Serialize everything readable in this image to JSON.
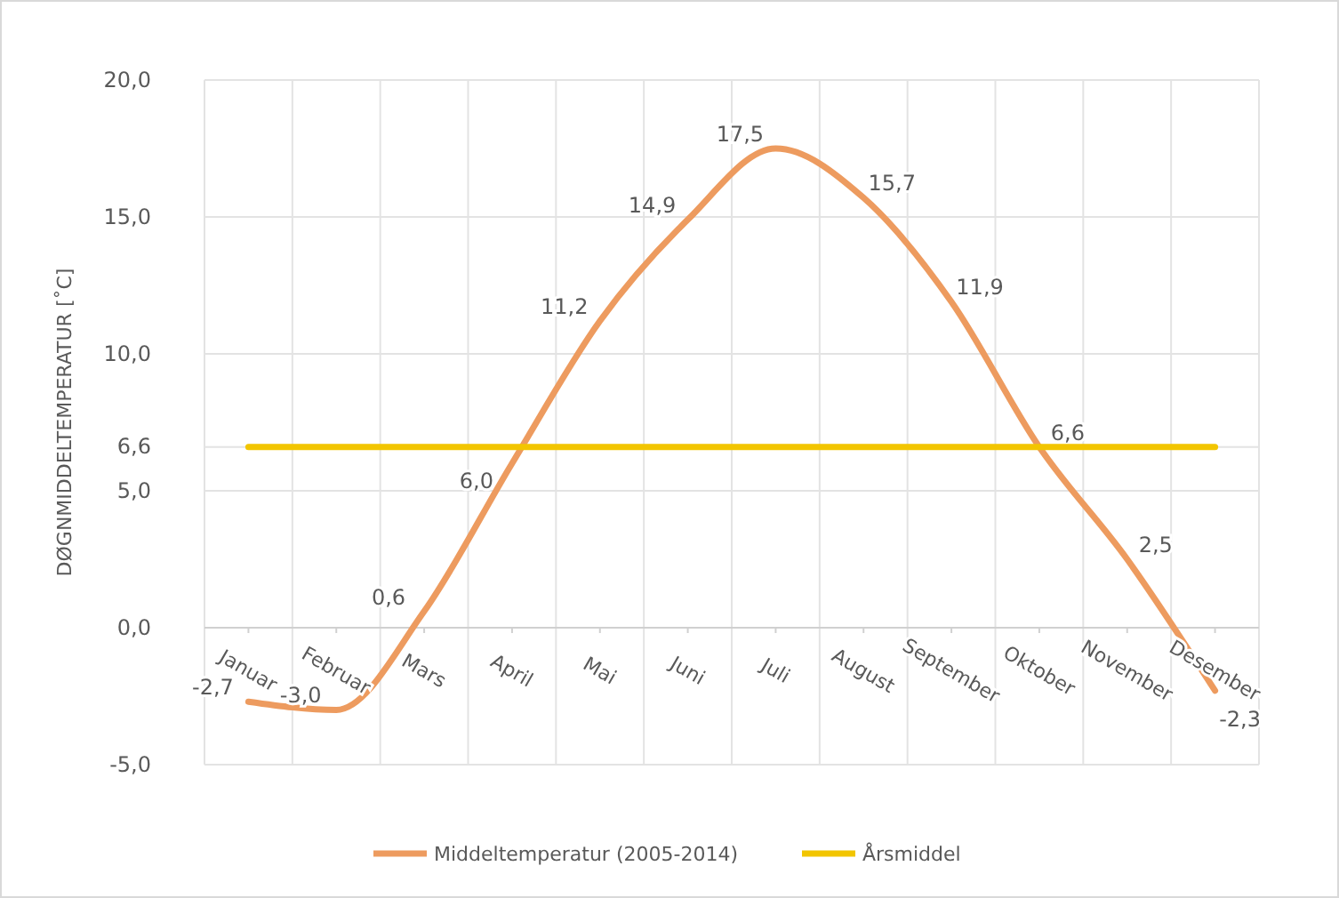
{
  "chart_data": {
    "type": "line",
    "ylabel": "DØGNMIDDELTEMPERATUR [˚C]",
    "categories": [
      "Januar",
      "Februar",
      "Mars",
      "April",
      "Mai",
      "Juni",
      "Juli",
      "August",
      "September",
      "Oktober",
      "November",
      "Desember"
    ],
    "series": [
      {
        "name": "Middeltemperatur (2005-2014)",
        "color": "#ed9b5f",
        "values": [
          -2.7,
          -3.0,
          0.6,
          6.0,
          11.2,
          14.9,
          17.5,
          15.7,
          11.9,
          6.6,
          2.5,
          -2.3
        ],
        "value_labels": [
          "-2,7",
          "-3,0",
          "0,6",
          "6,0",
          "11,2",
          "14,9",
          "17,5",
          "15,7",
          "11,9",
          "6,6",
          "2,5",
          "-2,3"
        ]
      },
      {
        "name": "Årsmiddel",
        "color": "#f2c500",
        "values": [
          6.6,
          6.6,
          6.6,
          6.6,
          6.6,
          6.6,
          6.6,
          6.6,
          6.6,
          6.6,
          6.6,
          6.6
        ]
      }
    ],
    "ylim": [
      -5,
      20
    ],
    "yticks": [
      {
        "value": -5,
        "label": "-5,0"
      },
      {
        "value": 0,
        "label": "0,0"
      },
      {
        "value": 5,
        "label": "5,0"
      },
      {
        "value": 6.6,
        "label": "6,6"
      },
      {
        "value": 10,
        "label": "10,0"
      },
      {
        "value": 15,
        "label": "15,0"
      },
      {
        "value": 20,
        "label": "20,0"
      }
    ],
    "grid": true,
    "legend": "bottom",
    "marker": "none",
    "line_style": "solid"
  }
}
